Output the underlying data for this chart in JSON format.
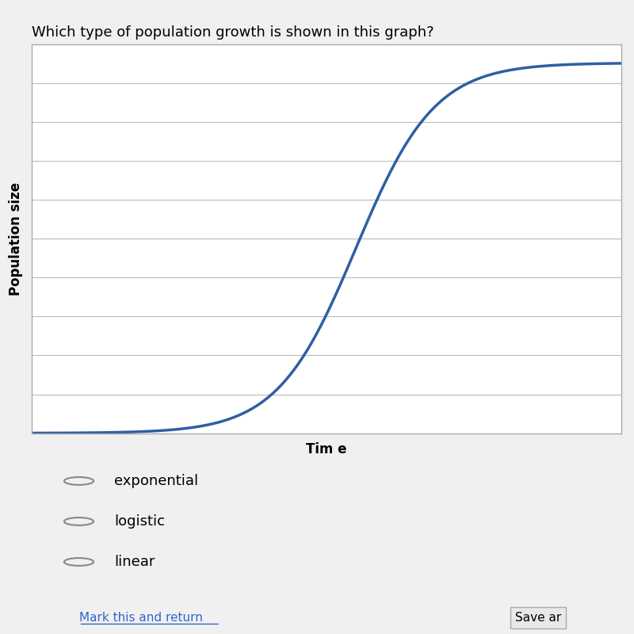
{
  "title": "Which type of population growth is shown in this graph?",
  "xlabel": "Tim e",
  "ylabel": "Population size",
  "line_color": "#2E5FA3",
  "line_width": 2.5,
  "background_color": "#f0f0f0",
  "plot_bg_color": "#ffffff",
  "grid_color": "#bbbbbb",
  "options": [
    "exponential",
    "logistic",
    "linear"
  ],
  "title_fontsize": 13,
  "axis_label_fontsize": 12,
  "option_fontsize": 13,
  "num_gridlines": 9
}
